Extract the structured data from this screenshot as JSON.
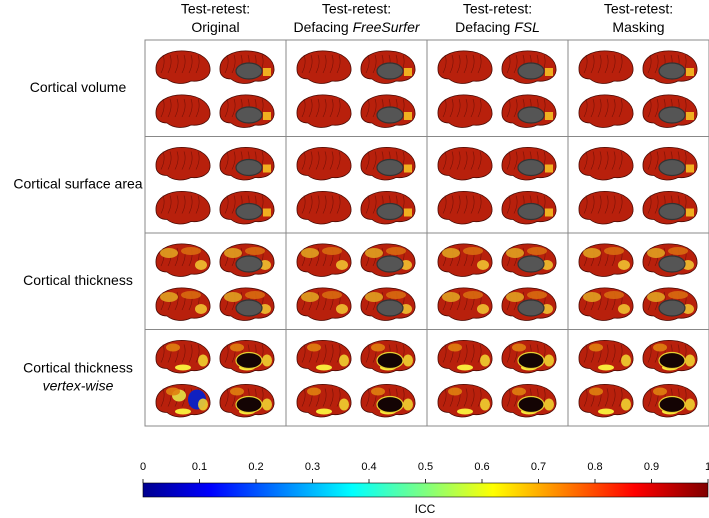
{
  "columns": [
    {
      "title": "Test-retest:",
      "subtitle": "Original"
    },
    {
      "title": "Test-retest:",
      "subtitle": "Defacing",
      "emphasis": "FreeSurfer"
    },
    {
      "title": "Test-retest:",
      "subtitle": "Defacing",
      "emphasis": "FSL"
    },
    {
      "title": "Test-retest:",
      "subtitle": "Masking"
    }
  ],
  "rows": [
    {
      "label": "Cortical volume"
    },
    {
      "label": "Cortical surface area"
    },
    {
      "label": "Cortical thickness"
    },
    {
      "label": "Cortical thickness",
      "emphasis": "vertex-wise"
    }
  ],
  "colorbar": {
    "label": "ICC",
    "lim": [
      0,
      1
    ],
    "ticks": [
      0,
      0.1,
      0.2,
      0.3,
      0.4,
      0.5,
      0.6,
      0.7,
      0.8,
      0.9,
      1
    ]
  }
}
